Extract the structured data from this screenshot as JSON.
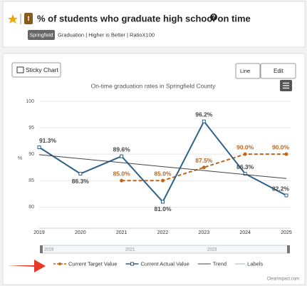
{
  "header": {
    "badge": "I",
    "title": "% of students who graduate high school on time",
    "help": "?",
    "tag": "Springfield",
    "meta": "Graduation | Higher is Better | RatioX100"
  },
  "toolbar": {
    "sticky": "Sticky Chart",
    "type_menu": "Line",
    "edit_menu": "Edit"
  },
  "navigator": {
    "labels": [
      "2019",
      "2021",
      "2023"
    ]
  },
  "footer": "ClearImpact.com",
  "legend_extra": "Labels",
  "chart_data": {
    "type": "line",
    "title": "On-time graduation rates in Springfield County",
    "y_label": "%",
    "categories": [
      "2019",
      "2020",
      "2021",
      "2022",
      "2023",
      "2024",
      "2025"
    ],
    "series": [
      {
        "name": "Current Target Value",
        "color": "#c0651a",
        "dashed": true,
        "values": [
          null,
          null,
          85.0,
          85.0,
          87.5,
          90.0,
          90.0
        ],
        "value_labels": [
          null,
          null,
          "85.0%",
          "85.0%",
          "87.5%",
          "90.0%",
          "90.0%"
        ]
      },
      {
        "name": "Current Actual Value",
        "color": "#2d6189",
        "values": [
          91.3,
          86.3,
          89.6,
          81.0,
          96.2,
          86.3,
          82.2
        ],
        "value_labels": [
          "91.3%",
          "86.3%",
          "89.6%",
          "81.0%",
          "96.2%",
          "86.3%",
          "82.2%"
        ]
      },
      {
        "name": "Trend",
        "color": "#444444",
        "values": [
          89.9,
          89.15,
          88.4,
          87.65,
          86.9,
          86.15,
          85.4
        ]
      }
    ],
    "ylim": [
      76,
      100
    ],
    "yticks": [
      80,
      85,
      90,
      95,
      100
    ],
    "grid": true
  }
}
